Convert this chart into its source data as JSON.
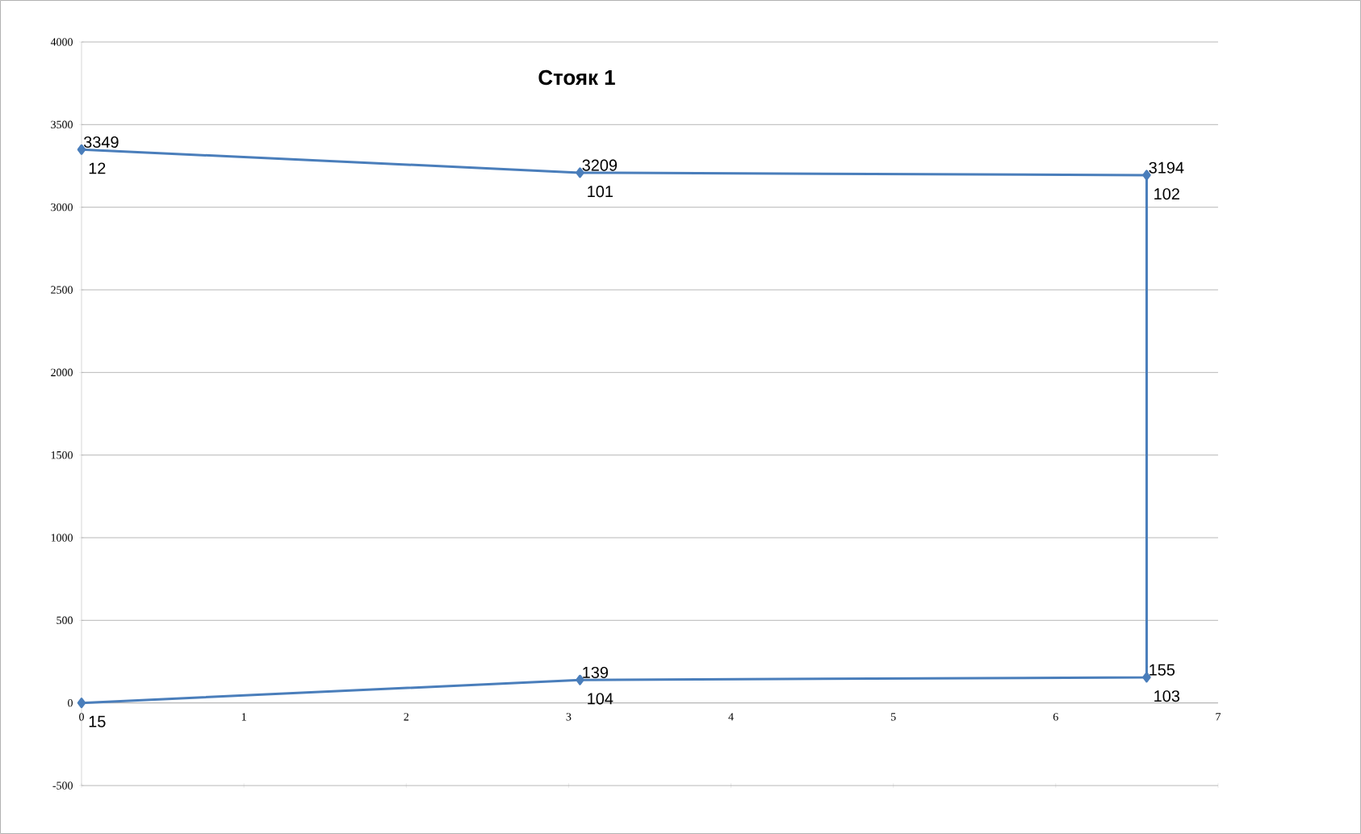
{
  "chart_data": {
    "type": "line",
    "title": "Стояк 1",
    "x": [
      0,
      3.07,
      6.56,
      6.56,
      3.07,
      0
    ],
    "series": [
      {
        "color": "#4a7ebb",
        "values": [
          3349,
          3209,
          3194,
          155,
          139,
          0
        ],
        "value_labels": [
          "3349",
          "3209",
          "3194",
          "155",
          "139",
          null
        ]
      }
    ],
    "annotations": [
      {
        "text": "12",
        "x": 0,
        "y": 3349
      },
      {
        "text": "101",
        "x": 3.07,
        "y": 3209
      },
      {
        "text": "102",
        "x": 6.56,
        "y": 3194
      },
      {
        "text": "103",
        "x": 6.56,
        "y": 155
      },
      {
        "text": "104",
        "x": 3.07,
        "y": 139
      },
      {
        "text": "15",
        "x": 0,
        "y": 0
      }
    ],
    "xlim": [
      0,
      7
    ],
    "xticks": [
      0,
      1,
      2,
      3,
      4,
      5,
      6,
      7
    ],
    "ylim": [
      -500,
      4000
    ],
    "yticks": [
      -500,
      0,
      500,
      1000,
      1500,
      2000,
      2500,
      3000,
      3500,
      4000
    ],
    "grid": "y",
    "marker": "diamond",
    "line_style": "solid"
  }
}
